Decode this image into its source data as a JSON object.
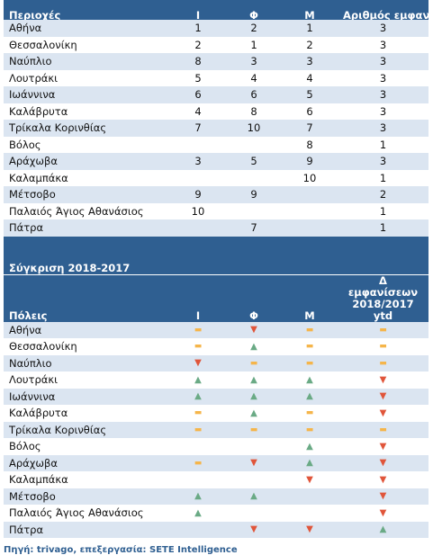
{
  "table1": {
    "header": [
      "Περιοχές",
      "Ι",
      "Φ",
      "Μ",
      "Αριθμός εμφανίσεων"
    ],
    "rows": [
      [
        "Αθήνα",
        1,
        2,
        1,
        3
      ],
      [
        "Θεσσαλονίκη",
        2,
        1,
        2,
        3
      ],
      [
        "Ναύπλιο",
        8,
        3,
        3,
        3
      ],
      [
        "Λουτράκι",
        5,
        4,
        4,
        3
      ],
      [
        "Ιωάννινα",
        6,
        6,
        5,
        3
      ],
      [
        "Καλάβρυτα",
        4,
        8,
        6,
        3
      ],
      [
        "Τρίκαλα Κορινθίας",
        7,
        10,
        7,
        3
      ],
      [
        "Βόλος",
        null,
        null,
        8,
        1
      ],
      [
        "Αράχωβα",
        3,
        5,
        9,
        3
      ],
      [
        "Καλαμπάκα",
        null,
        null,
        10,
        1
      ],
      [
        "Μέτσοβο",
        9,
        9,
        null,
        2
      ],
      [
        "Παλαιός Άγιος Αθανάσιος",
        10,
        null,
        null,
        1
      ],
      [
        "Πάτρα",
        null,
        7,
        null,
        1
      ]
    ]
  },
  "table2": {
    "title": "Σύγκριση 2018-2017",
    "header": [
      "Πόλεις",
      "Ι",
      "Φ",
      "Μ",
      "Δ εμφανίσεων 2018/2017 ytd"
    ],
    "rows": [
      [
        "Αθήνα",
        "▬",
        "▼",
        "▬",
        "▬"
      ],
      [
        "Θεσσαλονίκη",
        "▬",
        "▲",
        "▬",
        "▬"
      ],
      [
        "Ναύπλιο",
        "▼",
        "▬",
        "▬",
        "▬"
      ],
      [
        "Λουτράκι",
        "▲",
        "▲",
        "▲",
        "▼"
      ],
      [
        "Ιωάννινα",
        "▲",
        "▲",
        "▲",
        "▼"
      ],
      [
        "Καλάβρυτα",
        "▬",
        "▲",
        "▬",
        "▼"
      ],
      [
        "Τρίκαλα Κορινθίας",
        "▬",
        "▬",
        "▬",
        "▬"
      ],
      [
        "Βόλος",
        null,
        null,
        "▲",
        "▼"
      ],
      [
        "Αράχωβα",
        "▬",
        "▼",
        "▲",
        "▼"
      ],
      [
        "Καλαμπάκα",
        null,
        null,
        "▼",
        "▼"
      ],
      [
        "Μέτσοβο",
        "▲",
        "▲",
        null,
        "▼"
      ],
      [
        "Παλαιός Άγιος Αθανάσιος",
        "▲",
        null,
        null,
        "▼"
      ],
      [
        "Πάτρα",
        null,
        "▼",
        "▼",
        "▲"
      ]
    ]
  },
  "footer": "Πηγή: trivago, επεξεργασία: SETE Intelligence"
}
